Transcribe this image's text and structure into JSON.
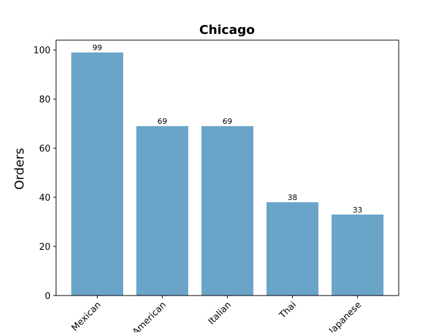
{
  "chart_data": {
    "type": "bar",
    "title": "Chicago",
    "xlabel": "",
    "ylabel": "Orders",
    "categories": [
      "Mexican",
      "American",
      "Italian",
      "Thai",
      "Japanese"
    ],
    "values": [
      99,
      69,
      69,
      38,
      33
    ],
    "ylim": [
      0,
      104
    ],
    "yticks": [
      0,
      20,
      40,
      60,
      80,
      100
    ],
    "bar_color": "#6aa5c9",
    "grid": false,
    "legend": "none",
    "data_labels": true
  }
}
